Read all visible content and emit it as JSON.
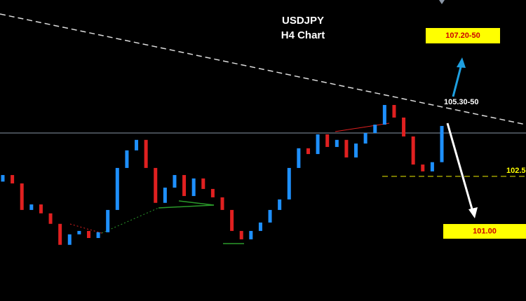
{
  "chart_data": {
    "type": "candlestick",
    "title": "USDJPY",
    "subtitle": "H4 Chart",
    "open": [
      102.3,
      102.55,
      102.23,
      101.22,
      101.43,
      101.09,
      100.69,
      99.89,
      100.29,
      100.42,
      100.15,
      100.37,
      101.22,
      102.82,
      103.49,
      103.89,
      102.82,
      101.49,
      102.07,
      102.55,
      101.75,
      102.42,
      102.02,
      101.7,
      101.22,
      100.42,
      100.1,
      100.42,
      100.74,
      101.22,
      101.62,
      102.82,
      103.57,
      103.35,
      104.1,
      103.62,
      103.89,
      103.22,
      103.75,
      104.15,
      104.47,
      105.22,
      104.74,
      104.02,
      102.95,
      102.69,
      103.04
    ],
    "close": [
      102.55,
      102.23,
      101.22,
      101.43,
      101.09,
      100.69,
      99.89,
      100.29,
      100.42,
      100.15,
      100.37,
      101.22,
      102.82,
      103.49,
      103.89,
      102.82,
      101.49,
      102.07,
      102.55,
      101.75,
      102.42,
      102.02,
      101.7,
      101.22,
      100.42,
      100.1,
      100.42,
      100.74,
      101.22,
      101.62,
      102.82,
      103.57,
      103.35,
      104.1,
      103.62,
      103.89,
      103.22,
      103.75,
      104.15,
      104.47,
      105.22,
      104.74,
      104.02,
      102.95,
      102.69,
      103.04,
      104.42
    ],
    "up_color": "#1e90ff",
    "down_color": "#e02020",
    "ylim": [
      97.75,
      109.22
    ],
    "level": 102.5,
    "level_color": "#d4d400",
    "annotations": [
      "107.20-50",
      "105.30-50",
      "101.00"
    ]
  }
}
